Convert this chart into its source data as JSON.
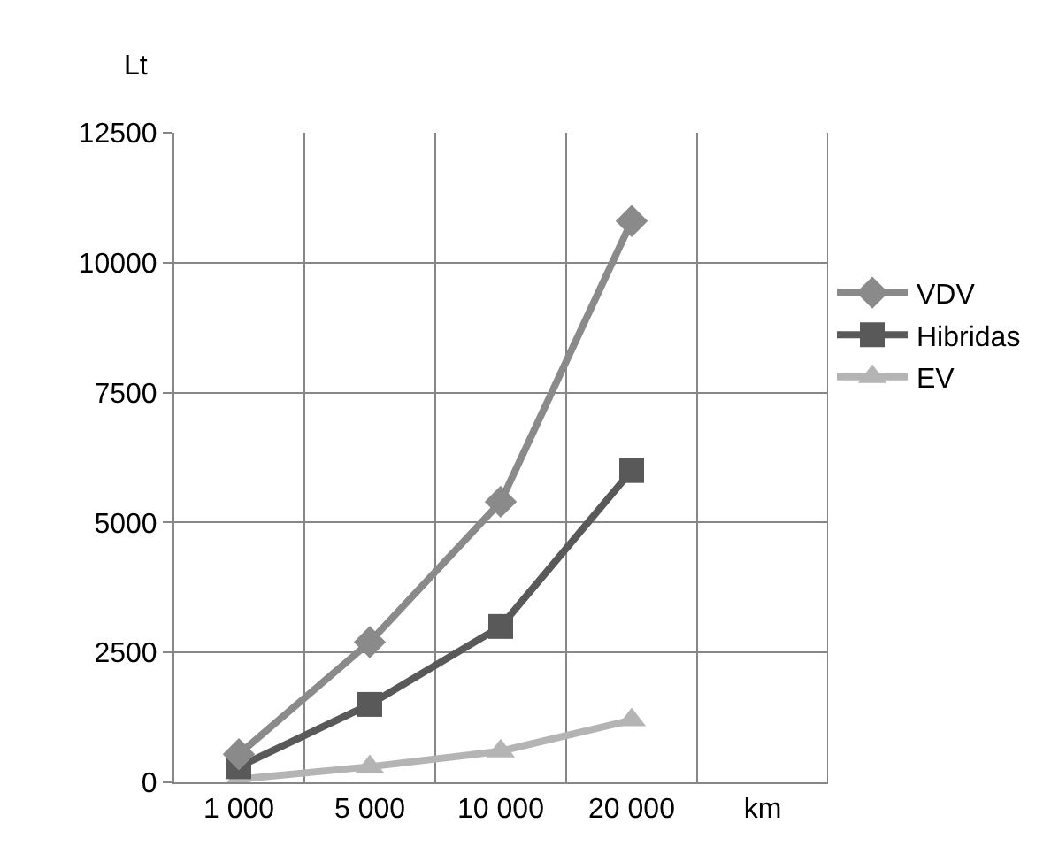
{
  "chart_data": {
    "type": "line",
    "ylabel": "Lt",
    "categories": [
      "1 000",
      "5 000",
      "10 000",
      "20 000",
      "km"
    ],
    "series": [
      {
        "name": "VDV",
        "color": "#8a8a8a",
        "marker": "diamond",
        "values": [
          540,
          2700,
          5400,
          10800,
          null
        ]
      },
      {
        "name": "Hibridas",
        "color": "#595959",
        "marker": "square",
        "values": [
          300,
          1500,
          3000,
          6000,
          null
        ]
      },
      {
        "name": "EV",
        "color": "#b4b4b4",
        "marker": "triangle",
        "values": [
          60,
          300,
          600,
          1200,
          null
        ]
      }
    ],
    "ylim": [
      0,
      12500
    ],
    "yticks": [
      0,
      2500,
      5000,
      7500,
      10000,
      12500
    ],
    "grid": true,
    "legend": "right",
    "line_style": "solid"
  }
}
